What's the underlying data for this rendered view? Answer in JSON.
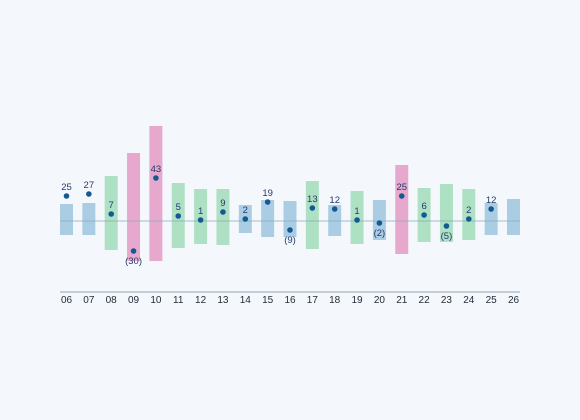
{
  "chart_data": {
    "type": "floating-range-with-markers",
    "title": "",
    "xlabel": "",
    "ylabel": "",
    "categories": [
      "06",
      "07",
      "08",
      "09",
      "10",
      "11",
      "12",
      "13",
      "14",
      "15",
      "16",
      "17",
      "18",
      "19",
      "20",
      "21",
      "22",
      "23",
      "24",
      "25",
      "26"
    ],
    "ranges": [
      {
        "low": -14,
        "high": 17,
        "group": "blue"
      },
      {
        "low": -14,
        "high": 18,
        "group": "blue"
      },
      {
        "low": -29,
        "high": 45,
        "group": "green"
      },
      {
        "low": -40,
        "high": 68,
        "group": "pink"
      },
      {
        "low": -40,
        "high": 95,
        "group": "pink"
      },
      {
        "low": -27,
        "high": 38,
        "group": "green"
      },
      {
        "low": -23,
        "high": 32,
        "group": "green"
      },
      {
        "low": -24,
        "high": 32,
        "group": "green"
      },
      {
        "low": -12,
        "high": 16,
        "group": "blue"
      },
      {
        "low": -16,
        "high": 21,
        "group": "blue"
      },
      {
        "low": -16,
        "high": 20,
        "group": "blue"
      },
      {
        "low": -28,
        "high": 40,
        "group": "green"
      },
      {
        "low": -15,
        "high": 16,
        "group": "blue"
      },
      {
        "low": -23,
        "high": 30,
        "group": "green"
      },
      {
        "low": -19,
        "high": 21,
        "group": "blue"
      },
      {
        "low": -33,
        "high": 56,
        "group": "pink"
      },
      {
        "low": -21,
        "high": 33,
        "group": "green"
      },
      {
        "low": -21,
        "high": 37,
        "group": "green"
      },
      {
        "low": -19,
        "high": 32,
        "group": "green"
      },
      {
        "low": -14,
        "high": 18,
        "group": "blue"
      },
      {
        "low": -14,
        "high": 22,
        "group": "blue"
      }
    ],
    "markers": [
      25,
      27,
      7,
      -30,
      43,
      5,
      1,
      9,
      2,
      19,
      -9,
      13,
      12,
      1,
      -2,
      25,
      6,
      -5,
      2,
      12,
      null
    ],
    "marker_labels": [
      "25",
      "27",
      "7",
      "(30)",
      "43",
      "5",
      "1",
      "9",
      "2",
      "19",
      "(9)",
      "13",
      "12",
      "1",
      "(2)",
      "25",
      "6",
      "(5)",
      "2",
      "12",
      ""
    ],
    "colors": {
      "blue": "#aacde3",
      "green": "#aee0c4",
      "pink": "#e6a9cd",
      "marker": "#135a93",
      "zero_line": "#8aa9bd",
      "axis": "#7a8791",
      "label": "#243a6b",
      "tick": "#1f2a36",
      "background": "#f4f8fc"
    },
    "ylim": [
      -55,
      115
    ],
    "grid": false,
    "legend": "none"
  }
}
